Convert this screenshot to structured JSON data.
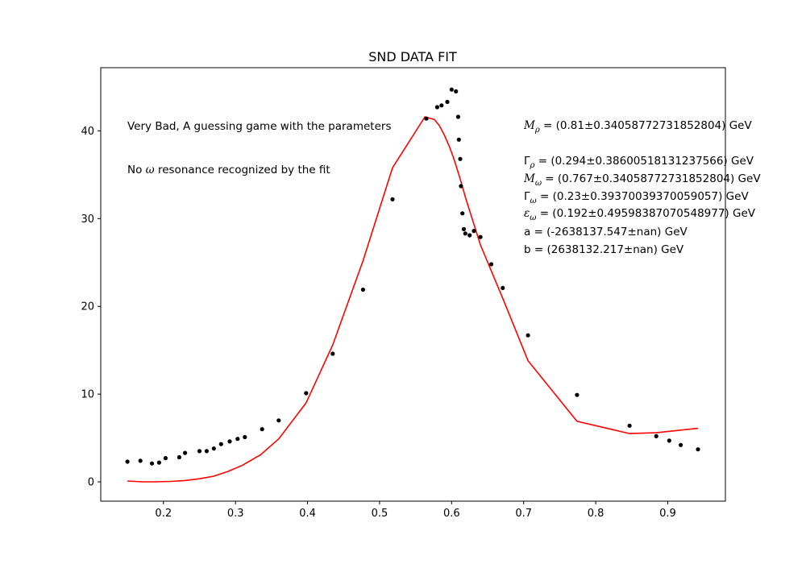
{
  "chart_data": {
    "type": "scatter",
    "title": "SND DATA FIT",
    "xlabel": "",
    "ylabel": "",
    "xlim": [
      0.113,
      0.98
    ],
    "ylim": [
      -2.2,
      47.2
    ],
    "grid": false,
    "xticks": [
      0.2,
      0.3,
      0.4,
      0.5,
      0.6,
      0.7,
      0.8,
      0.9
    ],
    "xtick_labels": [
      "0.2",
      "0.3",
      "0.4",
      "0.5",
      "0.6",
      "0.7",
      "0.8",
      "0.9"
    ],
    "yticks": [
      0,
      10,
      20,
      30,
      40
    ],
    "ytick_labels": [
      "0",
      "10",
      "20",
      "30",
      "40"
    ],
    "colors": {
      "data": "#000000",
      "fit": "#ff0000"
    },
    "series": [
      {
        "kind": "points",
        "x": [
          0.15,
          0.168,
          0.184,
          0.194,
          0.203,
          0.222,
          0.23,
          0.25,
          0.26,
          0.27,
          0.28,
          0.292,
          0.303,
          0.313,
          0.337,
          0.36,
          0.398,
          0.435,
          0.477,
          0.518,
          0.565,
          0.58,
          0.586,
          0.594,
          0.6,
          0.606,
          0.609,
          0.61,
          0.612,
          0.613,
          0.615,
          0.617,
          0.619,
          0.625,
          0.631,
          0.64,
          0.655,
          0.671,
          0.706,
          0.774,
          0.847,
          0.884,
          0.902,
          0.918,
          0.942
        ],
        "y": [
          2.3,
          2.4,
          2.1,
          2.2,
          2.7,
          2.8,
          3.3,
          3.5,
          3.5,
          3.8,
          4.3,
          4.6,
          4.9,
          5.1,
          6.0,
          7.0,
          10.1,
          14.6,
          21.9,
          32.2,
          41.4,
          42.7,
          42.9,
          43.3,
          44.7,
          44.5,
          41.6,
          39.0,
          36.8,
          33.7,
          30.6,
          28.8,
          28.3,
          28.1,
          28.6,
          27.9,
          24.8,
          22.1,
          16.7,
          9.9,
          6.4,
          5.2,
          4.7,
          4.2,
          3.7
        ]
      },
      {
        "kind": "line",
        "x": [
          0.15,
          0.17,
          0.19,
          0.21,
          0.23,
          0.25,
          0.27,
          0.29,
          0.31,
          0.335,
          0.36,
          0.398,
          0.435,
          0.477,
          0.518,
          0.563,
          0.576,
          0.583,
          0.59,
          0.597,
          0.604,
          0.612,
          0.62,
          0.64,
          0.672,
          0.706,
          0.774,
          0.847,
          0.884,
          0.942
        ],
        "y": [
          0.1,
          0.0,
          0.0,
          0.05,
          0.15,
          0.35,
          0.65,
          1.2,
          1.9,
          3.1,
          4.9,
          9.0,
          15.6,
          25.2,
          35.8,
          41.6,
          41.3,
          40.6,
          39.5,
          38.2,
          36.6,
          34.5,
          32.2,
          27.0,
          20.7,
          13.8,
          6.9,
          5.5,
          5.6,
          6.1
        ]
      }
    ],
    "annotations": {
      "left_line1": "Very Bad, A guessing game with the parameters",
      "left_line2_pre": "No ",
      "left_line2_sym": "ω",
      "left_line2_post": " resonance recognized by the fit",
      "m_rho_sym": "M",
      "m_rho_sub": "ρ",
      "m_rho_val": " = (0.81±0.34058772731852804) GeV",
      "g_rho_sym": "Γ",
      "g_rho_sub": "ρ",
      "g_rho_val": " = (0.294±0.38600518131237566) GeV",
      "m_omega_sym": "M",
      "m_omega_sub": "ω",
      "m_omega_val": " = (0.767±0.34058772731852804) GeV",
      "g_omega_sym": "Γ",
      "g_omega_sub": "ω",
      "g_omega_val": " = (0.23±0.39370039370059057) GeV",
      "e_omega_sym": "ε",
      "e_omega_sub": "ω",
      "e_omega_val": " = (0.192±0.49598387070548977) GeV",
      "a_line": "a = (-2638137.547±nan) GeV",
      "b_line": "b = (2638132.217±nan) GeV"
    }
  }
}
